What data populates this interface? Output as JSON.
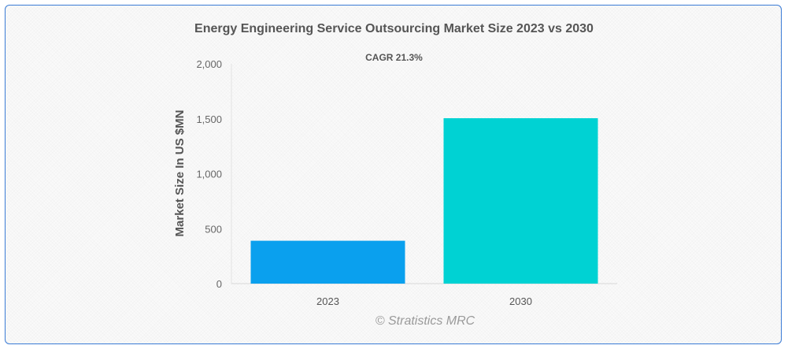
{
  "chart_data": {
    "type": "bar",
    "title": "Energy Engineering Service Outsourcing Market Size 2023 vs 2030",
    "subtitle": "CAGR 21.3%",
    "categories": [
      "2023",
      "2030"
    ],
    "values": [
      390,
      1505
    ],
    "colors": [
      "#0aa0ee",
      "#00d2d3"
    ],
    "xlabel": "",
    "ylabel": "Market Size In US $MN",
    "ylim": [
      0,
      2000
    ],
    "yticks": [
      0,
      500,
      1000,
      1500,
      2000
    ],
    "ytick_labels": [
      "0",
      "500",
      "1,000",
      "1,500",
      "2,000"
    ],
    "grid": false,
    "legend": "none"
  },
  "watermark": "© Stratistics MRC"
}
